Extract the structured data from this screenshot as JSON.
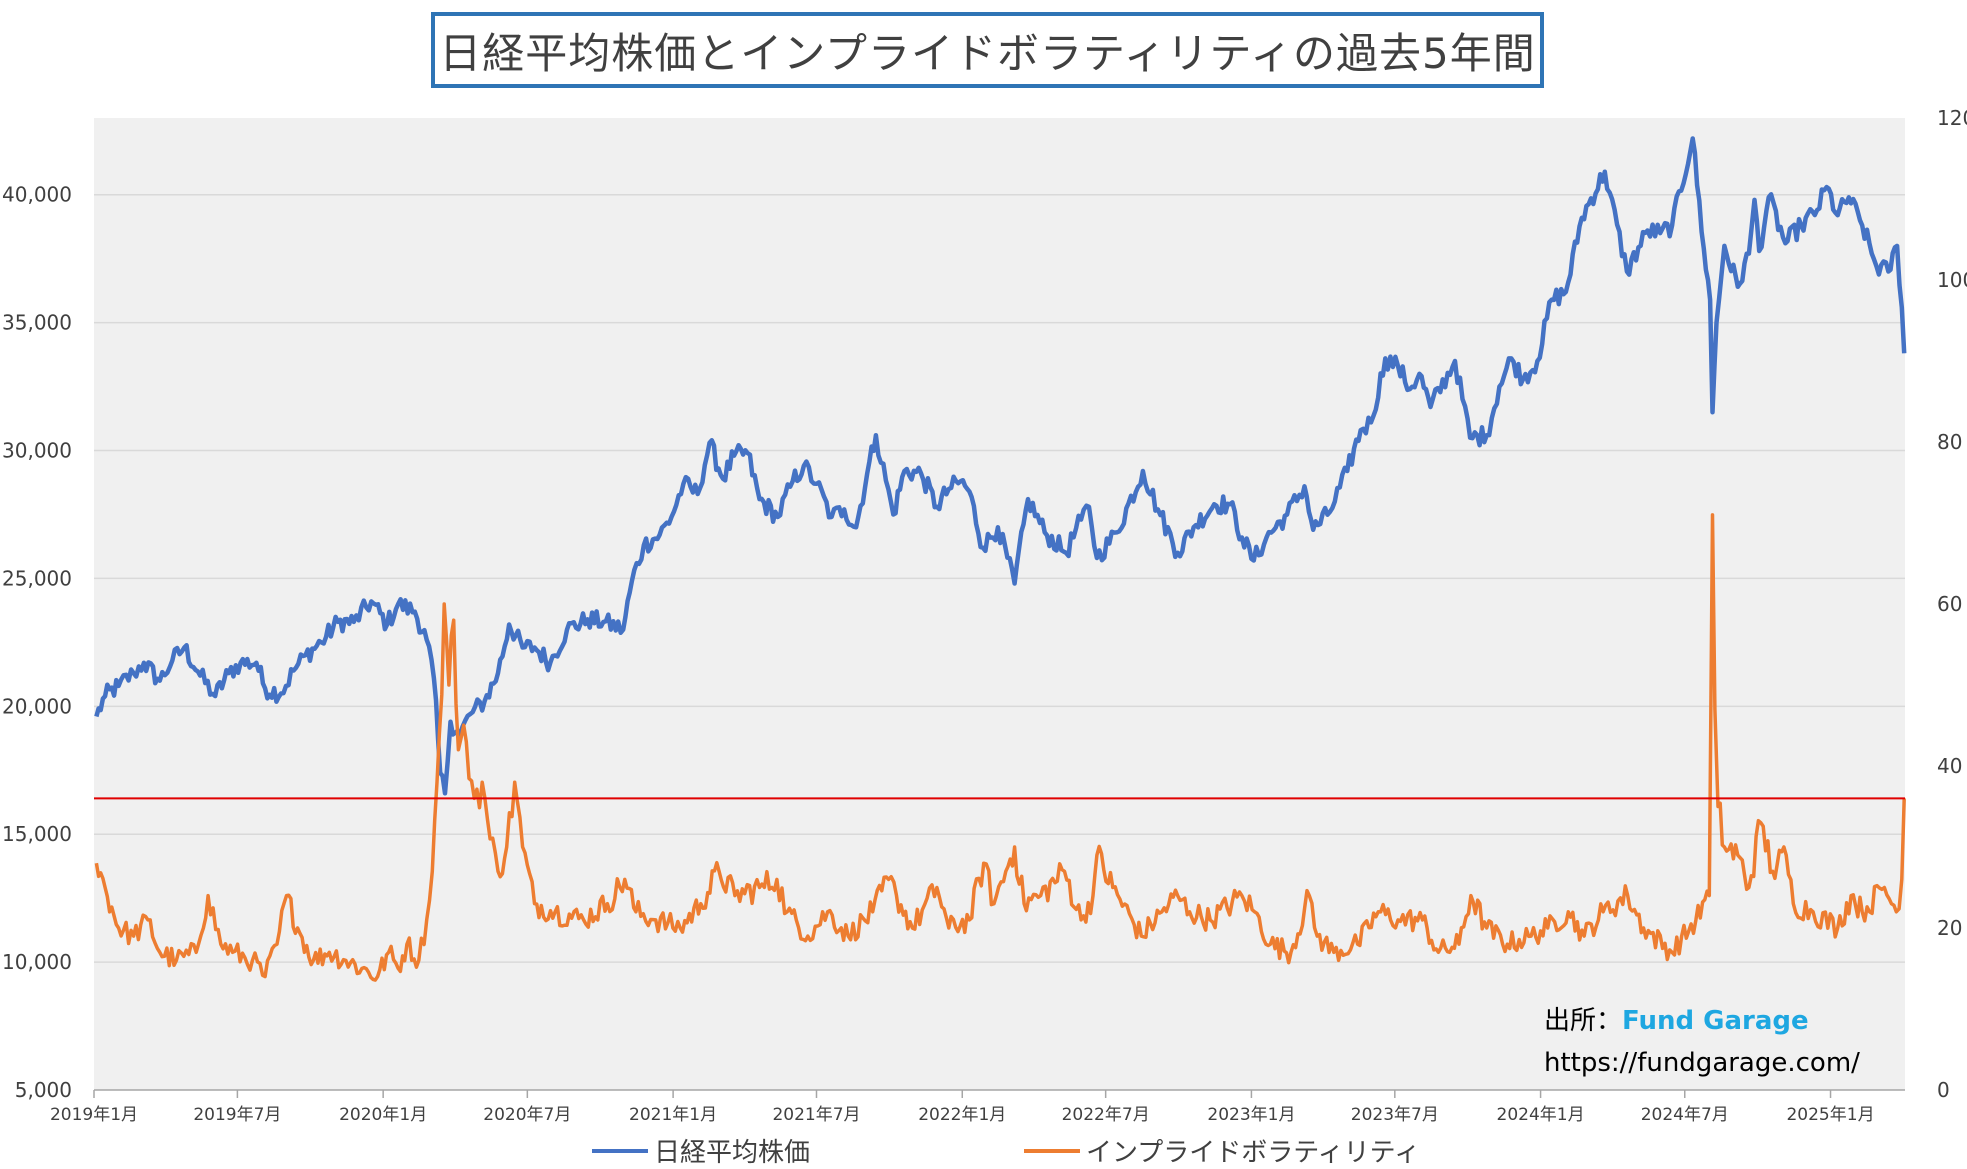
{
  "title": "日経平均株価とインプライドボラティリティの過去5年間",
  "source": {
    "label": "出所：",
    "brand": "Fund Garage",
    "url": "https://fundgarage.com/"
  },
  "colors": {
    "nikkei": "#4472c4",
    "volatility": "#ed7d31",
    "reference_line": "#e00000",
    "plot_background": "#f0f0f0",
    "gridline": "#d9d9d9"
  },
  "chart_data": {
    "type": "line",
    "title": "日経平均株価とインプライドボラティリティの過去5年間",
    "x_tick_labels": [
      "2019年1月",
      "2019年7月",
      "2020年1月",
      "2020年7月",
      "2021年1月",
      "2021年7月",
      "2022年1月",
      "2022年7月",
      "2023年1月",
      "2023年7月",
      "2024年1月",
      "2024年7月",
      "2025年1月"
    ],
    "x_range": [
      "2019-01",
      "2025-04"
    ],
    "y_left": {
      "range": [
        5000,
        43000
      ],
      "ticks": [
        5000,
        10000,
        15000,
        20000,
        25000,
        30000,
        35000,
        40000
      ],
      "tick_labels": [
        "5,000",
        "10,000",
        "15,000",
        "20,000",
        "25,000",
        "30,000",
        "35,000",
        "40,000"
      ]
    },
    "y_right": {
      "range": [
        0,
        120
      ],
      "ticks": [
        0,
        20,
        40,
        60,
        80,
        100,
        120
      ],
      "tick_labels": [
        "0",
        "20",
        "40",
        "60",
        "80",
        "100",
        "120"
      ]
    },
    "grid": true,
    "legend_position": "bottom",
    "reference_line": {
      "axis": "right",
      "value": 36
    },
    "series": [
      {
        "name": "日経平均株価",
        "axis": "left",
        "points": [
          [
            "2019-01-04",
            19600
          ],
          [
            "2019-01-15",
            20400
          ],
          [
            "2019-02-01",
            20800
          ],
          [
            "2019-02-20",
            21300
          ],
          [
            "2019-03-05",
            21700
          ],
          [
            "2019-03-25",
            21000
          ],
          [
            "2019-04-10",
            21800
          ],
          [
            "2019-04-25",
            22300
          ],
          [
            "2019-05-15",
            21200
          ],
          [
            "2019-06-03",
            20400
          ],
          [
            "2019-06-20",
            21300
          ],
          [
            "2019-07-05",
            21700
          ],
          [
            "2019-07-25",
            21700
          ],
          [
            "2019-08-05",
            20700
          ],
          [
            "2019-08-25",
            20500
          ],
          [
            "2019-09-10",
            21400
          ],
          [
            "2019-09-25",
            22000
          ],
          [
            "2019-10-15",
            22500
          ],
          [
            "2019-11-05",
            23300
          ],
          [
            "2019-11-25",
            23300
          ],
          [
            "2019-12-17",
            24100
          ],
          [
            "2020-01-06",
            23200
          ],
          [
            "2020-01-20",
            24000
          ],
          [
            "2020-02-10",
            23700
          ],
          [
            "2020-02-25",
            22600
          ],
          [
            "2020-03-05",
            21100
          ],
          [
            "2020-03-13",
            17400
          ],
          [
            "2020-03-19",
            16600
          ],
          [
            "2020-03-26",
            19400
          ],
          [
            "2020-04-07",
            18900
          ],
          [
            "2020-04-20",
            19700
          ],
          [
            "2020-05-08",
            20200
          ],
          [
            "2020-05-25",
            21300
          ],
          [
            "2020-06-08",
            23200
          ],
          [
            "2020-06-25",
            22300
          ],
          [
            "2020-07-10",
            22300
          ],
          [
            "2020-07-30",
            21700
          ],
          [
            "2020-08-20",
            23000
          ],
          [
            "2020-09-15",
            23400
          ],
          [
            "2020-10-05",
            23300
          ],
          [
            "2020-10-30",
            23000
          ],
          [
            "2020-11-10",
            24900
          ],
          [
            "2020-11-25",
            26300
          ],
          [
            "2020-12-15",
            26700
          ],
          [
            "2020-12-30",
            27400
          ],
          [
            "2021-01-14",
            28700
          ],
          [
            "2021-02-01",
            28300
          ],
          [
            "2021-02-16",
            30300
          ],
          [
            "2021-03-05",
            28900
          ],
          [
            "2021-03-19",
            29800
          ],
          [
            "2021-04-05",
            29900
          ],
          [
            "2021-04-20",
            28100
          ],
          [
            "2021-05-13",
            27400
          ],
          [
            "2021-06-01",
            28800
          ],
          [
            "2021-06-15",
            29400
          ],
          [
            "2021-07-01",
            28700
          ],
          [
            "2021-07-20",
            27400
          ],
          [
            "2021-08-05",
            27700
          ],
          [
            "2021-08-20",
            27000
          ],
          [
            "2021-09-03",
            29100
          ],
          [
            "2021-09-14",
            30600
          ],
          [
            "2021-10-06",
            27500
          ],
          [
            "2021-10-20",
            29200
          ],
          [
            "2021-11-10",
            29100
          ],
          [
            "2021-11-30",
            27800
          ],
          [
            "2021-12-15",
            28500
          ],
          [
            "2021-12-30",
            28800
          ],
          [
            "2022-01-10",
            28400
          ],
          [
            "2022-01-27",
            26200
          ],
          [
            "2022-02-15",
            27000
          ],
          [
            "2022-03-08",
            24800
          ],
          [
            "2022-03-25",
            28100
          ],
          [
            "2022-04-15",
            26800
          ],
          [
            "2022-05-12",
            26000
          ],
          [
            "2022-05-31",
            27300
          ],
          [
            "2022-06-10",
            27800
          ],
          [
            "2022-06-20",
            25800
          ],
          [
            "2022-07-15",
            26800
          ],
          [
            "2022-08-17",
            29200
          ],
          [
            "2022-09-05",
            27700
          ],
          [
            "2022-09-30",
            26000
          ],
          [
            "2022-10-20",
            27000
          ],
          [
            "2022-11-15",
            27900
          ],
          [
            "2022-12-05",
            27900
          ],
          [
            "2022-12-20",
            26600
          ],
          [
            "2023-01-04",
            25700
          ],
          [
            "2023-01-20",
            26600
          ],
          [
            "2023-02-15",
            27500
          ],
          [
            "2023-03-09",
            28600
          ],
          [
            "2023-03-20",
            26900
          ],
          [
            "2023-04-10",
            27600
          ],
          [
            "2023-05-02",
            29200
          ],
          [
            "2023-05-19",
            30800
          ],
          [
            "2023-06-01",
            31100
          ],
          [
            "2023-06-19",
            33600
          ],
          [
            "2023-07-05",
            33300
          ],
          [
            "2023-07-20",
            32400
          ],
          [
            "2023-08-01",
            33000
          ],
          [
            "2023-08-15",
            31700
          ],
          [
            "2023-09-15",
            33500
          ],
          [
            "2023-10-04",
            30500
          ],
          [
            "2023-10-25",
            30600
          ],
          [
            "2023-11-10",
            32500
          ],
          [
            "2023-11-25",
            33600
          ],
          [
            "2023-12-10",
            32800
          ],
          [
            "2023-12-28",
            33500
          ],
          [
            "2024-01-15",
            35900
          ],
          [
            "2024-02-02",
            36200
          ],
          [
            "2024-02-22",
            39100
          ],
          [
            "2024-03-22",
            40900
          ],
          [
            "2024-04-19",
            37000
          ],
          [
            "2024-05-15",
            38600
          ],
          [
            "2024-05-31",
            38500
          ],
          [
            "2024-06-15",
            38800
          ],
          [
            "2024-07-11",
            42200
          ],
          [
            "2024-07-25",
            37900
          ],
          [
            "2024-08-02",
            35900
          ],
          [
            "2024-08-05",
            31500
          ],
          [
            "2024-08-10",
            35000
          ],
          [
            "2024-08-20",
            38000
          ],
          [
            "2024-09-06",
            36400
          ],
          [
            "2024-09-20",
            37700
          ],
          [
            "2024-09-27",
            39800
          ],
          [
            "2024-10-03",
            37800
          ],
          [
            "2024-10-15",
            39900
          ],
          [
            "2024-11-05",
            38100
          ],
          [
            "2024-11-25",
            38800
          ],
          [
            "2024-12-15",
            39400
          ],
          [
            "2024-12-27",
            40300
          ],
          [
            "2025-01-10",
            39200
          ],
          [
            "2025-01-24",
            39900
          ],
          [
            "2025-02-10",
            38800
          ],
          [
            "2025-02-28",
            37200
          ],
          [
            "2025-03-15",
            37000
          ],
          [
            "2025-03-26",
            38000
          ],
          [
            "2025-04-01",
            35600
          ],
          [
            "2025-04-04",
            33800
          ]
        ]
      },
      {
        "name": "インプライドボラティリティ",
        "axis": "right",
        "points": [
          [
            "2019-01-04",
            28
          ],
          [
            "2019-01-15",
            25
          ],
          [
            "2019-02-01",
            20
          ],
          [
            "2019-02-20",
            19
          ],
          [
            "2019-03-10",
            21
          ],
          [
            "2019-03-25",
            17
          ],
          [
            "2019-04-15",
            16
          ],
          [
            "2019-05-10",
            17
          ],
          [
            "2019-05-25",
            24
          ],
          [
            "2019-06-10",
            18
          ],
          [
            "2019-06-25",
            17
          ],
          [
            "2019-07-20",
            16
          ],
          [
            "2019-08-05",
            14
          ],
          [
            "2019-08-20",
            18
          ],
          [
            "2019-09-01",
            24
          ],
          [
            "2019-09-15",
            20
          ],
          [
            "2019-10-05",
            16
          ],
          [
            "2019-10-25",
            17
          ],
          [
            "2019-11-15",
            16
          ],
          [
            "2019-12-05",
            15
          ],
          [
            "2019-12-25",
            14
          ],
          [
            "2020-01-08",
            17
          ],
          [
            "2020-01-20",
            15
          ],
          [
            "2020-01-31",
            18
          ],
          [
            "2020-02-15",
            16
          ],
          [
            "2020-02-25",
            21
          ],
          [
            "2020-03-03",
            27
          ],
          [
            "2020-03-09",
            38
          ],
          [
            "2020-03-12",
            44
          ],
          [
            "2020-03-18",
            60
          ],
          [
            "2020-03-24",
            50
          ],
          [
            "2020-03-30",
            58
          ],
          [
            "2020-04-05",
            42
          ],
          [
            "2020-04-15",
            43
          ],
          [
            "2020-04-25",
            36
          ],
          [
            "2020-05-05",
            38
          ],
          [
            "2020-05-15",
            31
          ],
          [
            "2020-05-25",
            27
          ],
          [
            "2020-06-05",
            30
          ],
          [
            "2020-06-15",
            38
          ],
          [
            "2020-06-25",
            30
          ],
          [
            "2020-07-10",
            23
          ],
          [
            "2020-08-05",
            22
          ],
          [
            "2020-09-10",
            21
          ],
          [
            "2020-10-10",
            23
          ],
          [
            "2020-11-01",
            26
          ],
          [
            "2020-11-15",
            22
          ],
          [
            "2020-12-10",
            21
          ],
          [
            "2021-01-10",
            20
          ],
          [
            "2021-02-05",
            23
          ],
          [
            "2021-02-28",
            27
          ],
          [
            "2021-03-20",
            24
          ],
          [
            "2021-04-20",
            25
          ],
          [
            "2021-05-12",
            26
          ],
          [
            "2021-05-25",
            22
          ],
          [
            "2021-06-20",
            19
          ],
          [
            "2021-07-15",
            22
          ],
          [
            "2021-08-10",
            19
          ],
          [
            "2021-09-10",
            22
          ],
          [
            "2021-09-30",
            26
          ],
          [
            "2021-10-10",
            24
          ],
          [
            "2021-10-30",
            20
          ],
          [
            "2021-11-30",
            25
          ],
          [
            "2021-12-15",
            20
          ],
          [
            "2022-01-10",
            21
          ],
          [
            "2022-01-28",
            28
          ],
          [
            "2022-02-10",
            23
          ],
          [
            "2022-02-25",
            27
          ],
          [
            "2022-03-08",
            30
          ],
          [
            "2022-03-20",
            23
          ],
          [
            "2022-04-10",
            24
          ],
          [
            "2022-05-10",
            27
          ],
          [
            "2022-05-31",
            21
          ],
          [
            "2022-06-15",
            24
          ],
          [
            "2022-06-20",
            29
          ],
          [
            "2022-07-10",
            25
          ],
          [
            "2022-08-15",
            19
          ],
          [
            "2022-09-10",
            22
          ],
          [
            "2022-09-30",
            24
          ],
          [
            "2022-10-15",
            22
          ],
          [
            "2022-11-10",
            21
          ],
          [
            "2022-12-20",
            24
          ],
          [
            "2023-01-05",
            22
          ],
          [
            "2023-01-25",
            18
          ],
          [
            "2023-02-20",
            17
          ],
          [
            "2023-03-15",
            24
          ],
          [
            "2023-03-25",
            19
          ],
          [
            "2023-04-15",
            17
          ],
          [
            "2023-05-15",
            18
          ],
          [
            "2023-06-10",
            22
          ],
          [
            "2023-07-05",
            21
          ],
          [
            "2023-08-05",
            21
          ],
          [
            "2023-08-25",
            17
          ],
          [
            "2023-09-20",
            18
          ],
          [
            "2023-10-05",
            24
          ],
          [
            "2023-10-25",
            20
          ],
          [
            "2023-11-20",
            18
          ],
          [
            "2023-12-20",
            19
          ],
          [
            "2024-01-10",
            20
          ],
          [
            "2024-02-05",
            22
          ],
          [
            "2024-02-25",
            19
          ],
          [
            "2024-03-20",
            22
          ],
          [
            "2024-04-20",
            24
          ],
          [
            "2024-05-10",
            20
          ],
          [
            "2024-06-15",
            17
          ],
          [
            "2024-07-15",
            21
          ],
          [
            "2024-08-01",
            24
          ],
          [
            "2024-08-05",
            71
          ],
          [
            "2024-08-08",
            47
          ],
          [
            "2024-08-12",
            35
          ],
          [
            "2024-08-20",
            30
          ],
          [
            "2024-09-06",
            29
          ],
          [
            "2024-09-20",
            25
          ],
          [
            "2024-10-05",
            33
          ],
          [
            "2024-10-20",
            27
          ],
          [
            "2024-11-06",
            29
          ],
          [
            "2024-11-15",
            23
          ],
          [
            "2024-12-10",
            22
          ],
          [
            "2025-01-10",
            20
          ],
          [
            "2025-01-27",
            24
          ],
          [
            "2025-02-10",
            22
          ],
          [
            "2025-03-10",
            25
          ],
          [
            "2025-03-25",
            22
          ],
          [
            "2025-04-01",
            26
          ],
          [
            "2025-04-04",
            36
          ]
        ]
      }
    ]
  }
}
